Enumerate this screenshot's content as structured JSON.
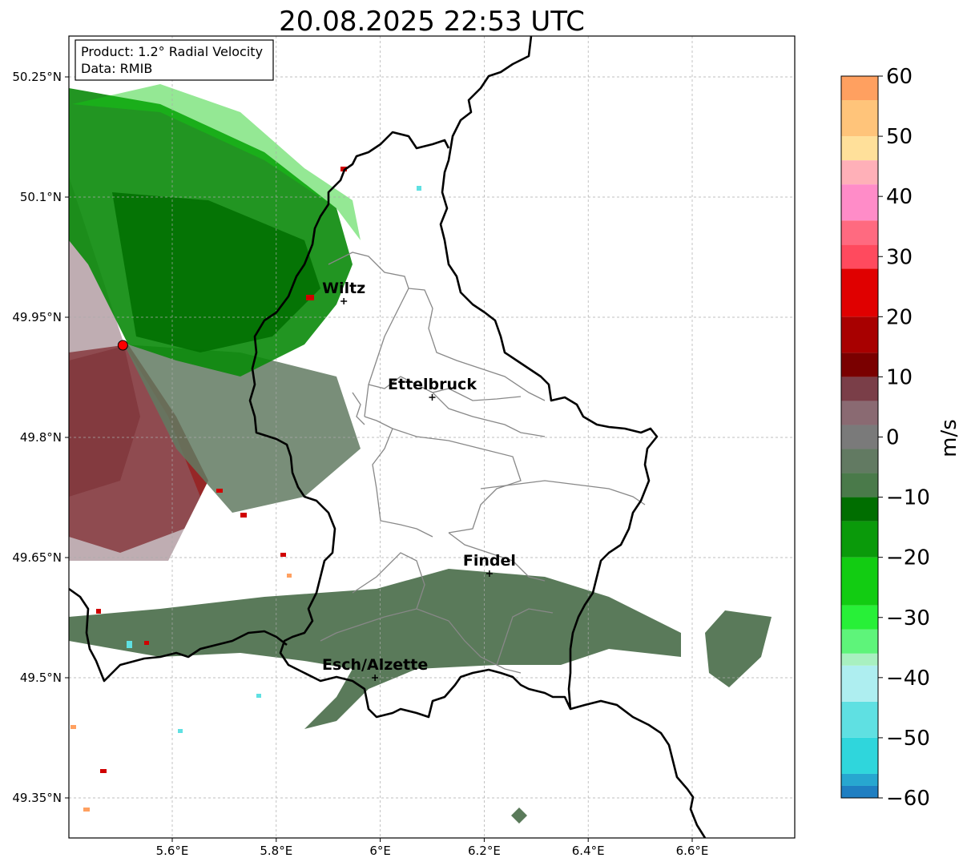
{
  "title": "20.08.2025 22:53 UTC",
  "info_box": {
    "product": "Product: 1.2° Radial Velocity",
    "data": "Data: RMIB"
  },
  "map": {
    "lon_range": [
      5.4,
      6.8
    ],
    "lat_range": [
      49.3,
      50.3
    ],
    "lon_ticks": [
      {
        "value": 5.6,
        "label": "5.6°E"
      },
      {
        "value": 5.8,
        "label": "5.8°E"
      },
      {
        "value": 6.0,
        "label": "6°E"
      },
      {
        "value": 6.2,
        "label": "6.2°E"
      },
      {
        "value": 6.4,
        "label": "6.4°E"
      },
      {
        "value": 6.6,
        "label": "6.6°E"
      }
    ],
    "lat_ticks": [
      {
        "value": 50.25,
        "label": "50.25°N"
      },
      {
        "value": 50.1,
        "label": "50.1°N"
      },
      {
        "value": 49.95,
        "label": "49.95°N"
      },
      {
        "value": 49.8,
        "label": "49.8°N"
      },
      {
        "value": 49.65,
        "label": "49.65°N"
      },
      {
        "value": 49.5,
        "label": "49.5°N"
      },
      {
        "value": 49.35,
        "label": "49.35°N"
      }
    ],
    "grid": true,
    "cities": [
      {
        "name": "Wiltz",
        "lon": 5.93,
        "lat": 49.97
      },
      {
        "name": "Ettelbruck",
        "lon": 6.1,
        "lat": 49.85
      },
      {
        "name": "Findel",
        "lon": 6.21,
        "lat": 49.63
      },
      {
        "name": "Esch/Alzette",
        "lon": 5.99,
        "lat": 49.5
      }
    ],
    "radar_site": {
      "lon": 5.505,
      "lat": 49.915,
      "color": "#ff0000"
    }
  },
  "colorbar": {
    "label": "m/s",
    "min": -60,
    "max": 60,
    "ticks": [
      {
        "value": 60,
        "label": "60"
      },
      {
        "value": 50,
        "label": "50"
      },
      {
        "value": 40,
        "label": "40"
      },
      {
        "value": 30,
        "label": "30"
      },
      {
        "value": 20,
        "label": "20"
      },
      {
        "value": 10,
        "label": "10"
      },
      {
        "value": 0,
        "label": "0"
      },
      {
        "value": -10,
        "label": "−10"
      },
      {
        "value": -20,
        "label": "−20"
      },
      {
        "value": -30,
        "label": "−30"
      },
      {
        "value": -40,
        "label": "−40"
      },
      {
        "value": -50,
        "label": "−50"
      },
      {
        "value": -60,
        "label": "−60"
      }
    ],
    "stops": [
      {
        "from": -60,
        "to": -58,
        "color": "#1f7fc2"
      },
      {
        "from": -58,
        "to": -56,
        "color": "#27a7d0"
      },
      {
        "from": -56,
        "to": -50,
        "color": "#2fd6dc"
      },
      {
        "from": -50,
        "to": -44,
        "color": "#5fe0e2"
      },
      {
        "from": -44,
        "to": -38,
        "color": "#aeeef0"
      },
      {
        "from": -38,
        "to": -36,
        "color": "#a8f0c0"
      },
      {
        "from": -36,
        "to": -32,
        "color": "#5ef47a"
      },
      {
        "from": -32,
        "to": -28,
        "color": "#28f038"
      },
      {
        "from": -28,
        "to": -20,
        "color": "#12cc12"
      },
      {
        "from": -20,
        "to": -14,
        "color": "#0a9a0a"
      },
      {
        "from": -14,
        "to": -10,
        "color": "#006e00"
      },
      {
        "from": -10,
        "to": -6,
        "color": "#4a7a4a"
      },
      {
        "from": -6,
        "to": -2,
        "color": "#627a62"
      },
      {
        "from": -2,
        "to": 2,
        "color": "#7a7a7a"
      },
      {
        "from": 2,
        "to": 6,
        "color": "#8a6a72"
      },
      {
        "from": 6,
        "to": 10,
        "color": "#7a3e48"
      },
      {
        "from": 10,
        "to": 14,
        "color": "#7a0000"
      },
      {
        "from": 14,
        "to": 20,
        "color": "#a80000"
      },
      {
        "from": 20,
        "to": 28,
        "color": "#e00000"
      },
      {
        "from": 28,
        "to": 32,
        "color": "#ff4a5e"
      },
      {
        "from": 32,
        "to": 36,
        "color": "#ff6a80"
      },
      {
        "from": 36,
        "to": 42,
        "color": "#ff8cc8"
      },
      {
        "from": 42,
        "to": 46,
        "color": "#ffb0b8"
      },
      {
        "from": 46,
        "to": 50,
        "color": "#ffe09a"
      },
      {
        "from": 50,
        "to": 56,
        "color": "#ffc47a"
      },
      {
        "from": 56,
        "to": 60,
        "color": "#ffa060"
      }
    ]
  },
  "colors": {
    "approaching_green": "#1a8a1a",
    "receding_red": "#8b0000",
    "near_zero": "#607a60",
    "border": "#000000",
    "canton_lines": "#888888"
  }
}
